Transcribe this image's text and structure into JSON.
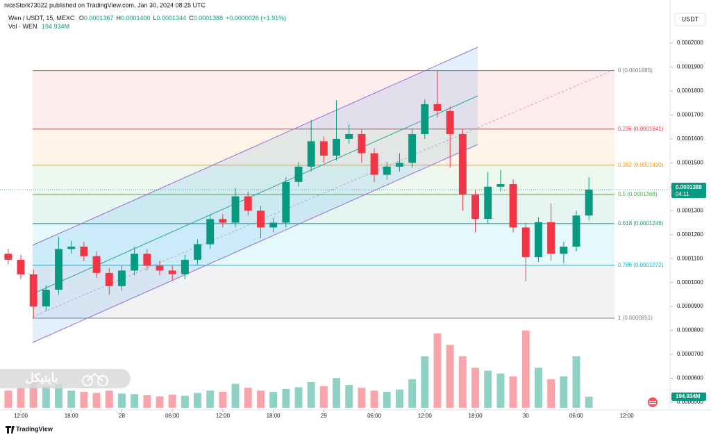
{
  "chart_data": {
    "type": "candlestick",
    "published": "niceStork73022 published on TradingView.com, Jan 30, 2024 08:25 UTC",
    "symbol": "Wen / USDT, 15, MEXC",
    "ohlc_legend": [
      {
        "label": "O",
        "value": "0.0001367"
      },
      {
        "label": "H",
        "value": "0.0001400"
      },
      {
        "label": "L",
        "value": "0.0001344"
      },
      {
        "label": "C",
        "value": "0.0001388"
      }
    ],
    "change": "+0.0000026 (+1.91%)",
    "volume_legend": {
      "label": "Vol · WEN",
      "value": "194.934M"
    },
    "currency": "USDT",
    "last_price": {
      "value": 0.0001388,
      "label": "0.0001388",
      "countdown": "04:11"
    },
    "last_volume": {
      "value": 194.934,
      "label": "194.934M"
    },
    "watermark": "بایتیکل",
    "footer": "TradingView",
    "up_color": "#089981",
    "down_color": "#f23645",
    "xlim": [
      -2.475,
      76.725
    ],
    "xticks": [
      {
        "value": 0,
        "label": "12:00"
      },
      {
        "value": 6,
        "label": "18:00"
      },
      {
        "value": 12,
        "label": "28"
      },
      {
        "value": 18,
        "label": "06:00"
      },
      {
        "value": 24,
        "label": "12:00"
      },
      {
        "value": 30,
        "label": "18:00"
      },
      {
        "value": 36,
        "label": "29"
      },
      {
        "value": 42,
        "label": "06:00"
      },
      {
        "value": 48,
        "label": "12:00"
      },
      {
        "value": 54,
        "label": "18:00"
      },
      {
        "value": 60,
        "label": "30"
      },
      {
        "value": 66,
        "label": "06:00"
      },
      {
        "value": 72,
        "label": "12:00"
      }
    ],
    "ylim": [
      4.68e-05,
      0.000218
    ],
    "yticks": [
      {
        "value": 5e-05,
        "label": "0.0000500"
      },
      {
        "value": 6e-05,
        "label": "0.0000600"
      },
      {
        "value": 7e-05,
        "label": "0.0000700"
      },
      {
        "value": 8e-05,
        "label": "0.0000800"
      },
      {
        "value": 9e-05,
        "label": "0.0000900"
      },
      {
        "value": 0.0001,
        "label": "0.0001000"
      },
      {
        "value": 0.00011,
        "label": "0.0001100"
      },
      {
        "value": 0.00012,
        "label": "0.0001200"
      },
      {
        "value": 0.00013,
        "label": "0.0001300"
      },
      {
        "value": 0.00014,
        "label": "0.0001400"
      },
      {
        "value": 0.00015,
        "label": "0.0001500"
      },
      {
        "value": 0.00016,
        "label": "0.0001600"
      },
      {
        "value": 0.00017,
        "label": "0.0001700"
      },
      {
        "value": 0.00018,
        "label": "0.0001800"
      },
      {
        "value": 0.00019,
        "label": "0.0001900"
      },
      {
        "value": 0.0002,
        "label": "0.0002000"
      }
    ],
    "volume_lim": [
      0,
      1700
    ],
    "fib_levels": [
      {
        "label": "0 (0.0001885)",
        "value": 0.0001885,
        "color": "#787b86"
      },
      {
        "label": "0.236 (0.0001641)",
        "value": 0.0001641,
        "color": "#f23645"
      },
      {
        "label": "0.382 (0.0001490)",
        "value": 0.000149,
        "color": "#ff9800"
      },
      {
        "label": "0.5 (0.0001368)",
        "value": 0.0001368,
        "color": "#4caf50"
      },
      {
        "label": "0.618 (0.0001246)",
        "value": 0.0001246,
        "color": "#089981"
      },
      {
        "label": "0.786 (0.0001072)",
        "value": 0.0001072,
        "color": "#00bcd4"
      },
      {
        "label": "1 (0.0000851)",
        "value": 8.51e-05,
        "color": "#787b86"
      }
    ],
    "x": [
      -1.5,
      0,
      1.5,
      3,
      4.5,
      6,
      7.5,
      9,
      10.5,
      12,
      13.5,
      15,
      16.5,
      18,
      19.5,
      21,
      22.5,
      24,
      25.5,
      27,
      28.5,
      30,
      31.5,
      33,
      34.5,
      36,
      37.5,
      39,
      40.5,
      42,
      43.5,
      45,
      46.5,
      48,
      49.5,
      51,
      52.5,
      54,
      55.5,
      57,
      58.5,
      60,
      61.5,
      63,
      64.5,
      66,
      67.5
    ],
    "open": [
      0.000112,
      0.0001095,
      0.0001034,
      9e-05,
      9.7e-05,
      0.000114,
      0.000115,
      0.000111,
      0.000104,
      9.85e-05,
      0.000105,
      0.000112,
      0.000107,
      0.000105,
      0.0001035,
      0.0001095,
      0.000116,
      0.0001265,
      0.000125,
      0.000136,
      0.00013,
      0.000123,
      0.000125,
      0.000142,
      0.0001484,
      0.000159,
      0.000153,
      0.00016,
      0.000162,
      0.000154,
      0.000145,
      0.0001484,
      0.00015,
      0.000162,
      0.0001745,
      0.0001716,
      0.000162,
      0.0001367,
      0.0001266,
      0.00014,
      0.0001411,
      0.000123,
      0.0001106,
      0.0001252,
      0.000112,
      0.000115,
      0.000128
    ],
    "high": [
      0.000114,
      0.0001115,
      0.0001054,
      9.9e-05,
      0.000119,
      0.0001175,
      0.000117,
      0.000113,
      0.000106,
      0.000107,
      0.000115,
      0.000114,
      0.000109,
      0.000107,
      0.0001115,
      0.000118,
      0.0001285,
      0.0001285,
      0.0001395,
      0.000138,
      0.000132,
      0.000127,
      0.000144,
      0.0001504,
      0.000168,
      0.000161,
      0.000176,
      0.000166,
      0.000164,
      0.000156,
      0.0001504,
      0.000154,
      0.000164,
      0.0001765,
      0.0001885,
      0.0001736,
      0.000164,
      0.0001387,
      0.000146,
      0.000147,
      0.0001431,
      0.000125,
      0.0001272,
      0.000133,
      0.000117,
      0.00013,
      0.000144
    ],
    "low": [
      0.0001075,
      0.0001014,
      8.51e-05,
      8.8e-05,
      9.5e-05,
      0.000112,
      0.000109,
      0.000102,
      9.5e-05,
      9.65e-05,
      0.000103,
      0.000105,
      0.000103,
      0.000101,
      0.0001015,
      0.0001075,
      0.000114,
      0.000123,
      0.000123,
      0.000128,
      0.0001185,
      0.000121,
      0.000123,
      0.00014,
      0.0001464,
      0.00015,
      0.000151,
      0.000158,
      0.00015,
      0.000142,
      0.000143,
      0.0001464,
      0.000148,
      0.00016,
      0.000169,
      0.000148,
      0.00013,
      0.000121,
      0.0001246,
      0.000138,
      0.000121,
      0.0001005,
      0.0001086,
      0.000109,
      0.000108,
      0.000113,
      0.000126
    ],
    "close": [
      0.0001095,
      0.0001034,
      9e-05,
      9.7e-05,
      0.000114,
      0.000115,
      0.000111,
      0.000104,
      9.85e-05,
      0.000105,
      0.000112,
      0.000107,
      0.000105,
      0.0001035,
      0.0001095,
      0.000116,
      0.0001265,
      0.000125,
      0.000136,
      0.00013,
      0.000123,
      0.000125,
      0.000142,
      0.0001484,
      0.000159,
      0.000153,
      0.00016,
      0.000162,
      0.000154,
      0.000145,
      0.0001484,
      0.00015,
      0.000162,
      0.0001745,
      0.0001716,
      0.000162,
      0.0001367,
      0.0001266,
      0.00014,
      0.0001411,
      0.000123,
      0.0001106,
      0.0001252,
      0.000112,
      0.000115,
      0.000128,
      0.0001388
    ],
    "volume": [
      300,
      350,
      500,
      380,
      420,
      300,
      280,
      260,
      300,
      250,
      240,
      220,
      200,
      230,
      210,
      260,
      300,
      280,
      420,
      350,
      300,
      280,
      330,
      360,
      450,
      380,
      520,
      400,
      350,
      300,
      280,
      320,
      500,
      900,
      1300,
      1100,
      900,
      700,
      650,
      600,
      550,
      1350,
      700,
      500,
      550,
      900,
      195
    ]
  }
}
